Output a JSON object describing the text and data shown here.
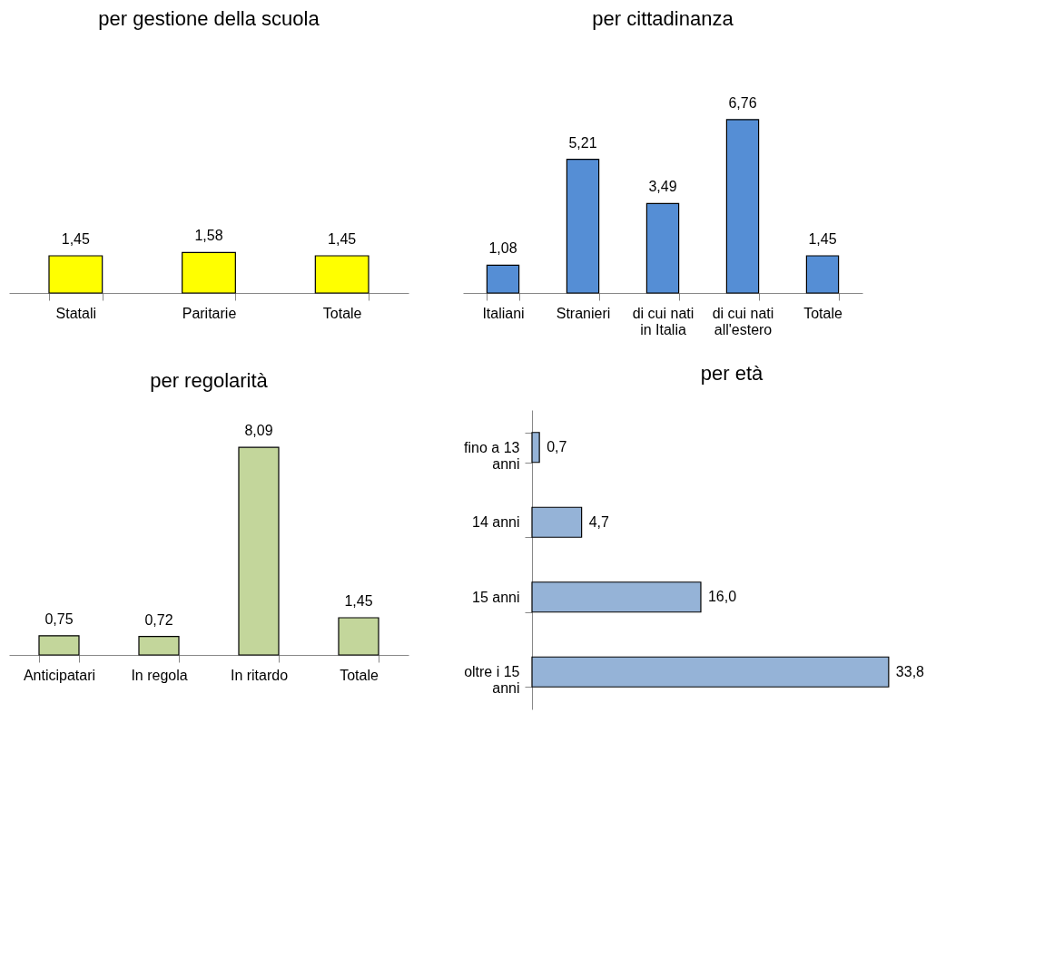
{
  "chart_data": [
    {
      "type": "bar",
      "title": "per gestione della scuola",
      "categories": [
        "Statali",
        "Paritarie",
        "Totale"
      ],
      "values": [
        1.45,
        1.58,
        1.45
      ],
      "value_labels": [
        "1,45",
        "1,58",
        "1,45"
      ],
      "color": "#ffff00"
    },
    {
      "type": "bar",
      "title": "per cittadinanza",
      "categories": [
        "Italiani",
        "Stranieri",
        "di cui nati in Italia",
        "di cui nati all'estero",
        "Totale"
      ],
      "values": [
        1.08,
        5.21,
        3.49,
        6.76,
        1.45
      ],
      "value_labels": [
        "1,08",
        "5,21",
        "3,49",
        "6,76",
        "1,45"
      ],
      "color": "#558ed5"
    },
    {
      "type": "bar",
      "title": "per regolarità",
      "categories": [
        "Anticipatari",
        "In regola",
        "In ritardo",
        "Totale"
      ],
      "values": [
        0.75,
        0.72,
        8.09,
        1.45
      ],
      "value_labels": [
        "0,75",
        "0,72",
        "8,09",
        "1,45"
      ],
      "color": "#c3d69b"
    },
    {
      "type": "bar",
      "title": "per età",
      "orientation": "horizontal",
      "categories": [
        "fino a 13 anni",
        "14 anni",
        "15 anni",
        "oltre i 15 anni"
      ],
      "values": [
        0.7,
        4.7,
        16.0,
        33.8
      ],
      "value_labels": [
        "0,7",
        "4,7",
        "16,0",
        "33,8"
      ],
      "color": "#95b3d7"
    }
  ]
}
